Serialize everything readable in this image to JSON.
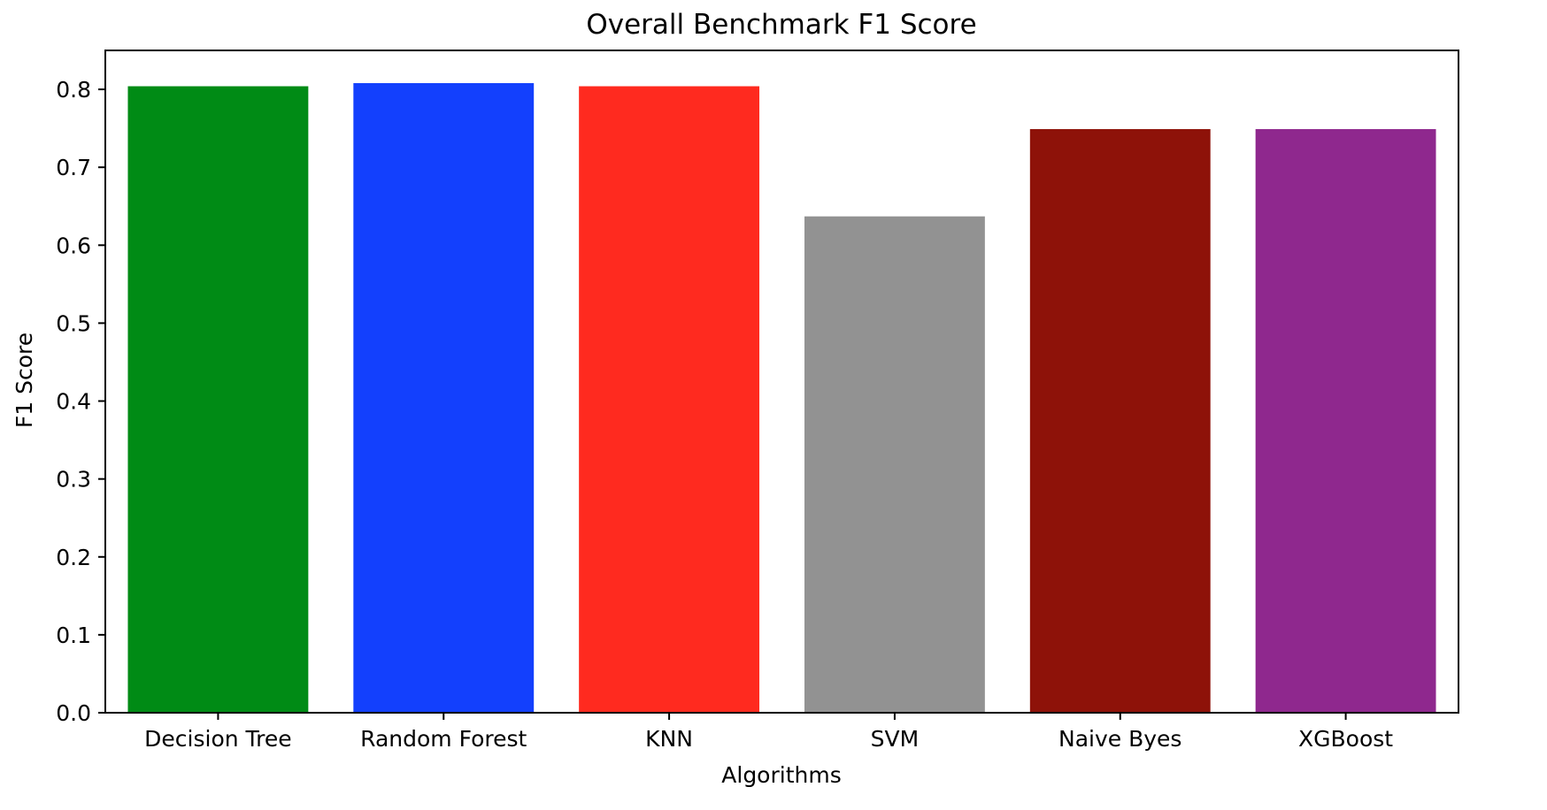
{
  "chart_data": {
    "type": "bar",
    "title": "Overall Benchmark F1 Score",
    "xlabel": "Algorithms",
    "ylabel": "F1 Score",
    "categories": [
      "Decision Tree",
      "Random Forest",
      "KNN",
      "SVM",
      "Naive Byes",
      "XGBoost"
    ],
    "values": [
      0.804,
      0.808,
      0.804,
      0.637,
      0.749,
      0.749
    ],
    "colors": [
      "#008b15",
      "#1340fd",
      "#ff2a1f",
      "#929292",
      "#8e1209",
      "#8f288e"
    ],
    "ylim": [
      0,
      0.85
    ],
    "yticks": [
      0.0,
      0.1,
      0.2,
      0.3,
      0.4,
      0.5,
      0.6,
      0.7,
      0.8
    ],
    "ytick_labels": [
      "0.0",
      "0.1",
      "0.2",
      "0.3",
      "0.4",
      "0.5",
      "0.6",
      "0.7",
      "0.8"
    ],
    "grid": false,
    "legend": "none"
  }
}
